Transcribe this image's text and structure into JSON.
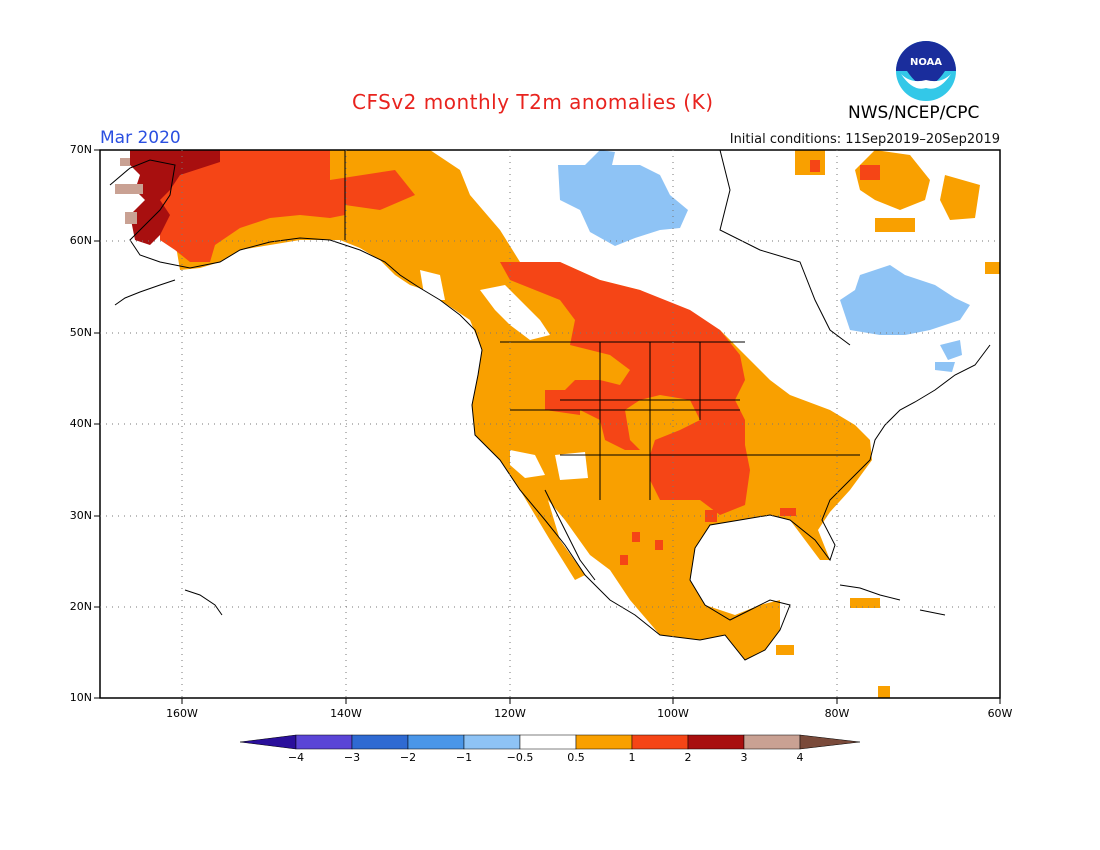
{
  "title": "CFSv2 monthly T2m anomalies (K)",
  "month": "Mar 2020",
  "initial_conditions": "Initial conditions: 11Sep2019–20Sep2019",
  "organization": "NWS/NCEP/CPC",
  "logo_text": "NOAA",
  "map": {
    "lat_labels": [
      "70N",
      "60N",
      "50N",
      "40N",
      "30N",
      "20N",
      "10N"
    ],
    "lon_labels": [
      "160W",
      "140W",
      "120W",
      "100W",
      "80W",
      "60W"
    ],
    "lat_range": [
      10,
      70
    ],
    "lon_range": [
      -170,
      -60
    ],
    "gridlines": "dotted",
    "region": "North America"
  },
  "colorbar": {
    "labels": [
      "−4",
      "−3",
      "−2",
      "−1",
      "−0.5",
      "0.5",
      "1",
      "2",
      "3",
      "4"
    ],
    "colors": [
      "#2a0f9b",
      "#5a45d6",
      "#2f6ad2",
      "#4a96e8",
      "#8ec3f5",
      "#ffffff",
      "#f9a000",
      "#f54516",
      "#a80f0f",
      "#c9a193",
      "#7a4a3a"
    ]
  },
  "anomaly_levels": {
    "below_-0.5_light_blue": "#8ec3f5",
    "0.5_to_1_orange": "#f9a000",
    "1_to_2_red_orange": "#f54516",
    "2_to_3_dark_red": "#a80f0f",
    "3_to_4_tan": "#c9a193"
  }
}
